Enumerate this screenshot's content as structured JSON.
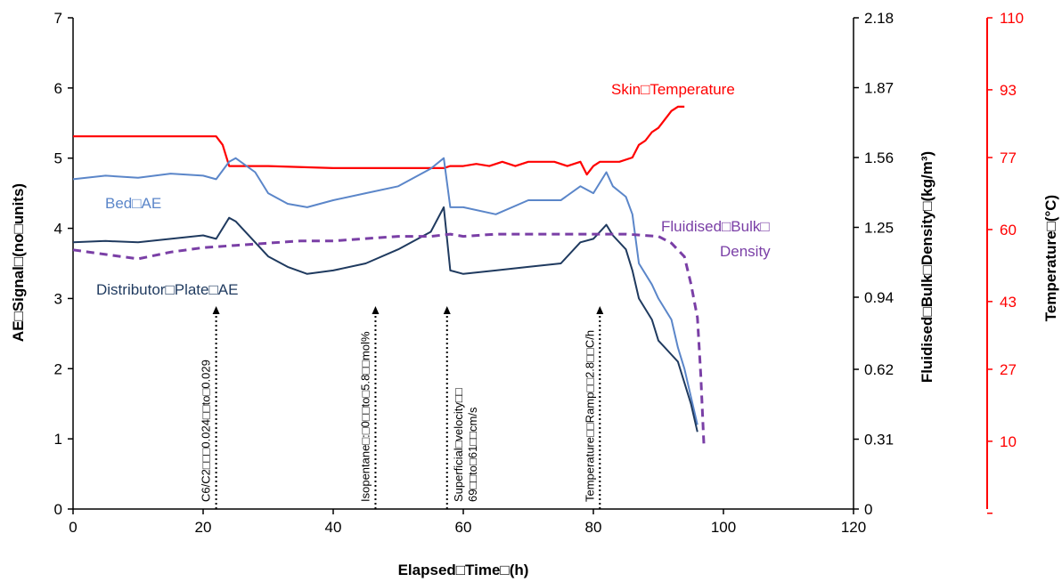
{
  "chart_data": {
    "type": "line",
    "xlabel": "Elapsed□Time□(h)",
    "ylabel_left": "AE□Signal□(no□units)",
    "ylabel_right1": "Fluidised□Bulk□Density□(kg/m³)",
    "ylabel_right2": "Temperature□(°C)",
    "xlim": [
      0,
      120
    ],
    "ylim_left": [
      0,
      7
    ],
    "ylim_right1": [
      0,
      2.18
    ],
    "ylim_right2": [
      -6,
      110
    ],
    "grid": false,
    "x_ticks": [
      "0",
      "20",
      "40",
      "60",
      "80",
      "100",
      "120"
    ],
    "y_left_ticks": [
      "0",
      "1",
      "2",
      "3",
      "4",
      "5",
      "6",
      "7"
    ],
    "y_right1_ticks": [
      "0",
      "0.31",
      "0.62",
      "0.94",
      "1.25",
      "1.56",
      "1.87",
      "2.18"
    ],
    "y_right2_ticks": [
      "10",
      "27",
      "43",
      "60",
      "77",
      "93",
      "110"
    ],
    "colors": {
      "bed_ae": "#5b86c9",
      "distributor_ae": "#1f3a5f",
      "bulk_density": "#7a3fa6",
      "skin_temperature": "#ff0000"
    },
    "series_labels": {
      "bed_ae": "Bed□AE",
      "distributor_ae": "Distributor□Plate□AE",
      "bulk_density_line1": "Fluidised□Bulk□",
      "bulk_density_line2": "Density",
      "skin_temperature": "Skin□Temperature"
    },
    "series": [
      {
        "key": "skin_temperature",
        "axis": "right2",
        "x": [
          0,
          10,
          20,
          22,
          23,
          24,
          30,
          40,
          50,
          57,
          58,
          60,
          62,
          64,
          66,
          68,
          70,
          72,
          74,
          76,
          78,
          79,
          80,
          81,
          82,
          84,
          86,
          87,
          88,
          89,
          90,
          91,
          92,
          93,
          94
        ],
        "y": [
          82,
          82,
          82,
          82,
          80,
          75,
          75,
          74.5,
          74.5,
          74.5,
          75,
          75,
          75.5,
          75,
          76,
          75,
          76,
          76,
          76,
          75,
          76,
          73,
          75,
          76,
          76,
          76,
          77,
          80,
          81,
          83,
          84,
          86,
          88,
          89,
          89
        ]
      },
      {
        "key": "bed_ae",
        "axis": "left",
        "x": [
          0,
          5,
          10,
          15,
          20,
          22,
          24,
          25,
          28,
          30,
          33,
          36,
          40,
          45,
          50,
          55,
          57,
          58,
          60,
          65,
          70,
          75,
          78,
          80,
          82,
          83,
          85,
          86,
          87,
          89,
          90,
          92,
          93,
          94,
          95,
          96
        ],
        "y": [
          4.7,
          4.75,
          4.72,
          4.78,
          4.75,
          4.7,
          4.95,
          5.0,
          4.8,
          4.5,
          4.35,
          4.3,
          4.4,
          4.5,
          4.6,
          4.85,
          5.0,
          4.3,
          4.3,
          4.2,
          4.4,
          4.4,
          4.6,
          4.5,
          4.8,
          4.6,
          4.45,
          4.2,
          3.5,
          3.2,
          3.0,
          2.7,
          2.3,
          2.0,
          1.6,
          1.2
        ]
      },
      {
        "key": "distributor_ae",
        "axis": "left",
        "x": [
          0,
          5,
          10,
          15,
          20,
          22,
          24,
          25,
          28,
          30,
          33,
          36,
          40,
          45,
          50,
          55,
          57,
          58,
          60,
          65,
          70,
          75,
          78,
          80,
          82,
          83,
          85,
          86,
          87,
          89,
          90,
          92,
          93,
          94,
          95,
          96
        ],
        "y": [
          3.8,
          3.82,
          3.8,
          3.85,
          3.9,
          3.85,
          4.15,
          4.1,
          3.8,
          3.6,
          3.45,
          3.35,
          3.4,
          3.5,
          3.7,
          3.95,
          4.3,
          3.4,
          3.35,
          3.4,
          3.45,
          3.5,
          3.8,
          3.85,
          4.05,
          3.9,
          3.7,
          3.4,
          3.0,
          2.7,
          2.4,
          2.2,
          2.1,
          1.8,
          1.5,
          1.1
        ]
      },
      {
        "key": "bulk_density",
        "axis": "right1",
        "x": [
          0,
          5,
          10,
          15,
          20,
          25,
          30,
          35,
          40,
          45,
          50,
          55,
          58,
          60,
          65,
          70,
          75,
          80,
          85,
          90,
          92,
          93,
          94,
          95,
          96,
          96.5,
          97
        ],
        "y": [
          1.15,
          1.13,
          1.11,
          1.14,
          1.16,
          1.17,
          1.18,
          1.19,
          1.19,
          1.2,
          1.21,
          1.21,
          1.22,
          1.21,
          1.22,
          1.22,
          1.22,
          1.22,
          1.22,
          1.21,
          1.18,
          1.15,
          1.12,
          1.0,
          0.85,
          0.6,
          0.28
        ]
      }
    ],
    "annotations": [
      {
        "x": 22,
        "text": "C6/C2□□□0.024□□to□0.029"
      },
      {
        "x": 46.5,
        "text": "Isopentane□:□0□□to□5.8□□mol%"
      },
      {
        "x": 57.5,
        "text_line1": "Superficial□velocity□□",
        "text_line2": "69□□to□61□□cm/s"
      },
      {
        "x": 81,
        "text": "Temperature□□Ramp□□2.8□□C/h"
      }
    ]
  }
}
